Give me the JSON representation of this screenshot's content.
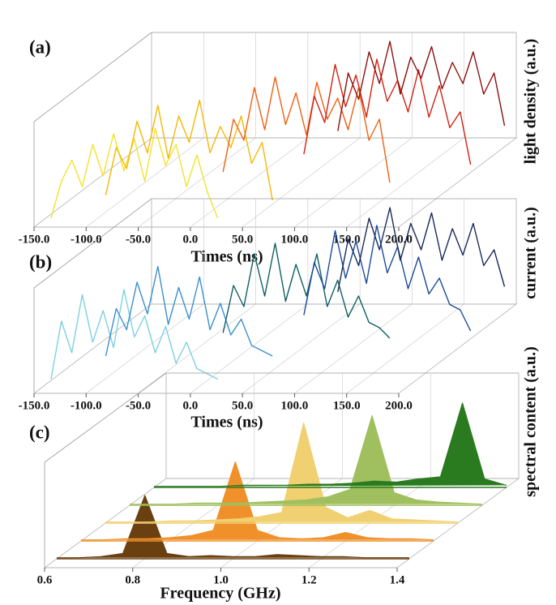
{
  "chart_data": [
    {
      "type": "waterfall",
      "label": "(a)",
      "xlabel": "Times (ns)",
      "zlabel": "light density (a.u.)",
      "xlim": [
        -150,
        200
      ],
      "zlim": [
        0,
        1
      ],
      "xticks": [
        {
          "value": -150,
          "label": "-150.0"
        },
        {
          "value": -100,
          "label": "-100.0"
        },
        {
          "value": -50,
          "label": "-50.0"
        },
        {
          "value": 0,
          "label": "0.0"
        },
        {
          "value": 50,
          "label": "50.0"
        },
        {
          "value": 100,
          "label": "100.0"
        },
        {
          "value": 150,
          "label": "150.0"
        },
        {
          "value": 200,
          "label": "200.0"
        }
      ],
      "series": [
        {
          "color": "#f2e32a",
          "x": [
            -145,
            -135,
            -125,
            -115,
            -105,
            -95,
            -85,
            -75,
            -65,
            -55,
            -45,
            -35,
            -25,
            -15,
            -5,
            5,
            15
          ],
          "values": [
            0,
            0.35,
            0.55,
            0.3,
            0.7,
            0.4,
            0.8,
            0.45,
            0.75,
            0.35,
            0.85,
            0.5,
            0.7,
            0.3,
            0.6,
            0.25,
            0
          ]
        },
        {
          "color": "#f5b800",
          "x": [
            -115,
            -105,
            -95,
            -85,
            -75,
            -65,
            -55,
            -45,
            -35,
            -25,
            -15,
            -5,
            5,
            15,
            25,
            35,
            45
          ],
          "values": [
            0.05,
            0.5,
            0.3,
            0.75,
            0.45,
            0.9,
            0.4,
            0.8,
            0.55,
            0.95,
            0.45,
            0.7,
            0.5,
            0.8,
            0.35,
            0.55,
            0
          ]
        },
        {
          "color": "#f06010",
          "x": [
            -25,
            -15,
            -5,
            5,
            15,
            25,
            35,
            45,
            55,
            65,
            75,
            85,
            95,
            105,
            115,
            125,
            135
          ],
          "values": [
            0.1,
            0.6,
            0.4,
            0.9,
            0.5,
            1.0,
            0.55,
            0.85,
            0.45,
            0.95,
            0.6,
            0.8,
            0.5,
            0.9,
            0.4,
            0.6,
            0
          ]
        },
        {
          "color": "#d42010",
          "x": [
            30,
            40,
            50,
            60,
            70,
            80,
            90,
            100,
            110,
            120,
            130,
            140,
            150,
            160,
            170,
            180,
            190
          ],
          "values": [
            0.1,
            0.65,
            0.4,
            0.95,
            0.55,
            0.85,
            0.45,
            1.0,
            0.6,
            0.8,
            0.5,
            0.9,
            0.45,
            0.75,
            0.35,
            0.5,
            0
          ]
        },
        {
          "color": "#8b1010",
          "x": [
            40,
            50,
            60,
            70,
            80,
            90,
            100,
            110,
            120,
            130,
            140,
            150,
            160,
            170,
            180,
            190,
            200
          ],
          "values": [
            0.15,
            0.7,
            0.45,
            0.9,
            0.6,
            1.0,
            0.5,
            0.85,
            0.65,
            0.95,
            0.55,
            0.8,
            0.6,
            0.9,
            0.5,
            0.7,
            0.2
          ]
        }
      ]
    },
    {
      "type": "waterfall",
      "label": "(b)",
      "xlabel": "Times (ns)",
      "zlabel": "current (a.u.)",
      "xlim": [
        -150,
        200
      ],
      "zlim": [
        0,
        1
      ],
      "xticks": [
        {
          "value": -150,
          "label": "-150.0"
        },
        {
          "value": -100,
          "label": "-100.0"
        },
        {
          "value": -50,
          "label": "-50.0"
        },
        {
          "value": 0,
          "label": "0.0"
        },
        {
          "value": 50,
          "label": "50.0"
        },
        {
          "value": 100,
          "label": "100.0"
        },
        {
          "value": 150,
          "label": "150.0"
        },
        {
          "value": 200,
          "label": "200.0"
        }
      ],
      "series": [
        {
          "color": "#7fd0e0",
          "x": [
            -145,
            -135,
            -125,
            -115,
            -105,
            -95,
            -85,
            -75,
            -65,
            -55,
            -45,
            -35,
            -25,
            -15,
            -5,
            5,
            15
          ],
          "values": [
            0.05,
            0.6,
            0.3,
            0.85,
            0.4,
            0.7,
            0.35,
            0.9,
            0.45,
            0.65,
            0.3,
            0.55,
            0.2,
            0.4,
            0.15,
            0.1,
            0.05
          ]
        },
        {
          "color": "#3a90d0",
          "x": [
            -115,
            -105,
            -95,
            -85,
            -75,
            -65,
            -55,
            -45,
            -35,
            -25,
            -15,
            -5,
            5,
            15,
            25,
            35,
            45
          ],
          "values": [
            0.1,
            0.55,
            0.35,
            0.8,
            0.5,
            0.95,
            0.4,
            0.75,
            0.45,
            0.85,
            0.35,
            0.6,
            0.3,
            0.45,
            0.2,
            0.15,
            0.1
          ]
        },
        {
          "color": "#0f6060",
          "x": [
            -25,
            -15,
            -5,
            5,
            15,
            25,
            35,
            45,
            55,
            65,
            75,
            85,
            95,
            105,
            115,
            125,
            135
          ],
          "values": [
            0.15,
            0.6,
            0.4,
            0.9,
            0.5,
            1.0,
            0.45,
            0.8,
            0.5,
            0.9,
            0.4,
            0.65,
            0.3,
            0.5,
            0.25,
            0.2,
            0.1
          ]
        },
        {
          "color": "#1a4a9a",
          "x": [
            30,
            40,
            50,
            60,
            70,
            80,
            90,
            100,
            110,
            120,
            130,
            140,
            150,
            160,
            170,
            180,
            190
          ],
          "values": [
            0.15,
            0.65,
            0.4,
            0.95,
            0.5,
            0.85,
            0.45,
            1.0,
            0.55,
            0.8,
            0.4,
            0.7,
            0.35,
            0.5,
            0.25,
            0.2,
            0
          ]
        },
        {
          "color": "#1a2a5a",
          "x": [
            40,
            50,
            60,
            70,
            80,
            90,
            100,
            110,
            120,
            130,
            140,
            150,
            160,
            170,
            180,
            190,
            200
          ],
          "values": [
            0.2,
            0.7,
            0.45,
            0.9,
            0.6,
            1.0,
            0.5,
            0.85,
            0.6,
            0.95,
            0.5,
            0.8,
            0.55,
            0.85,
            0.45,
            0.6,
            0.25
          ]
        }
      ]
    },
    {
      "type": "waterfall",
      "label": "(c)",
      "xlabel": "Frequency (GHz)",
      "zlabel": "spectral content (a.u.)",
      "xlim": [
        0.6,
        1.4
      ],
      "zlim": [
        0,
        1
      ],
      "xticks": [
        0.6,
        0.8,
        {
          "value": 1,
          "label": "1.0"
        },
        1.2,
        1.4
      ],
      "filled": true,
      "series": [
        {
          "color": "#6a4010",
          "x": [
            0.6,
            0.65,
            0.7,
            0.75,
            0.8,
            0.85,
            0.9,
            0.95,
            1,
            1.05,
            1.1,
            1.15,
            1.2,
            1.25,
            1.3,
            1.35,
            1.4
          ],
          "values": [
            0.01,
            0.01,
            0.02,
            0.05,
            0.6,
            0.05,
            0.02,
            0.03,
            0.02,
            0.02,
            0.04,
            0.03,
            0.02,
            0.02,
            0.01,
            0.01,
            0.01
          ]
        },
        {
          "color": "#f0902a",
          "x": [
            0.6,
            0.65,
            0.7,
            0.75,
            0.8,
            0.85,
            0.9,
            0.95,
            1,
            1.05,
            1.1,
            1.15,
            1.2,
            1.25,
            1.3,
            1.35,
            1.4
          ],
          "values": [
            0.01,
            0.01,
            0.02,
            0.02,
            0.03,
            0.05,
            0.1,
            0.75,
            0.1,
            0.03,
            0.02,
            0.03,
            0.08,
            0.03,
            0.02,
            0.02,
            0.01
          ]
        },
        {
          "color": "#f0d070",
          "x": [
            0.6,
            0.65,
            0.7,
            0.75,
            0.8,
            0.85,
            0.9,
            0.95,
            1,
            1.05,
            1.1,
            1.15,
            1.2,
            1.25,
            1.3,
            1.35,
            1.4
          ],
          "values": [
            0.01,
            0.01,
            0.01,
            0.02,
            0.02,
            0.03,
            0.04,
            0.06,
            0.1,
            0.95,
            0.15,
            0.05,
            0.12,
            0.04,
            0.03,
            0.02,
            0.01
          ]
        },
        {
          "color": "#a0c060",
          "x": [
            0.6,
            0.65,
            0.7,
            0.75,
            0.8,
            0.85,
            0.9,
            0.95,
            1,
            1.05,
            1.1,
            1.15,
            1.2,
            1.25,
            1.3,
            1.35,
            1.4
          ],
          "values": [
            0.01,
            0.01,
            0.01,
            0.02,
            0.02,
            0.02,
            0.03,
            0.04,
            0.05,
            0.08,
            0.15,
            0.85,
            0.12,
            0.05,
            0.03,
            0.02,
            0.01
          ]
        },
        {
          "color": "#2a7a20",
          "x": [
            0.6,
            0.65,
            0.7,
            0.75,
            0.8,
            0.85,
            0.9,
            0.95,
            1,
            1.05,
            1.1,
            1.15,
            1.2,
            1.25,
            1.3,
            1.35,
            1.4
          ],
          "values": [
            0.01,
            0.01,
            0.01,
            0.01,
            0.02,
            0.02,
            0.02,
            0.03,
            0.03,
            0.04,
            0.06,
            0.05,
            0.08,
            0.1,
            0.8,
            0.08,
            0.02
          ]
        }
      ]
    }
  ]
}
